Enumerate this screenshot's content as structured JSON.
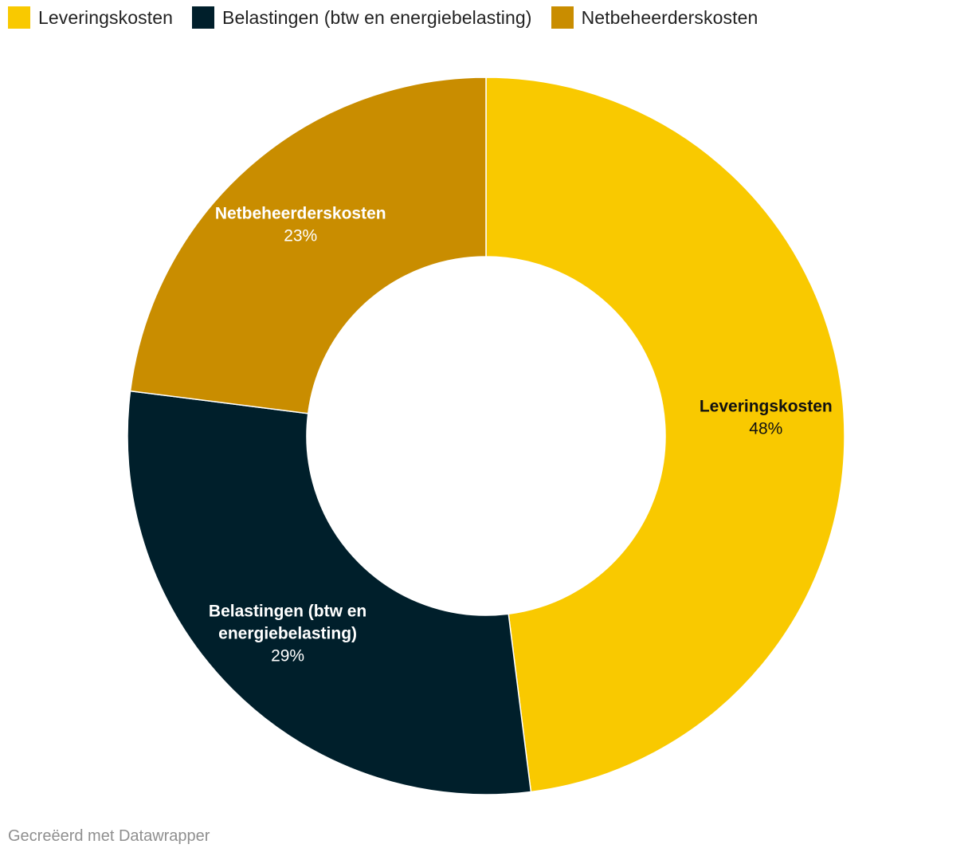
{
  "chart_data": {
    "type": "pie",
    "variant": "donut",
    "categories": [
      "Leveringskosten",
      "Belastingen (btw en energiebelasting)",
      "Netbeheerderskosten"
    ],
    "values": [
      48,
      29,
      23
    ],
    "value_labels": [
      "48%",
      "29%",
      "23%"
    ],
    "colors": [
      "#f9c900",
      "#001f2b",
      "#c98d00"
    ],
    "label_colors": [
      "#111111",
      "#ffffff",
      "#ffffff"
    ],
    "slice_labels": [
      [
        "Leveringskosten"
      ],
      [
        "Belastingen (btw en",
        "energiebelasting)"
      ],
      [
        "Netbeheerderskosten"
      ]
    ],
    "legend_position": "top-left",
    "start_angle": "top",
    "direction": "clockwise"
  },
  "footer": {
    "credit": "Gecreëerd met Datawrapper"
  }
}
